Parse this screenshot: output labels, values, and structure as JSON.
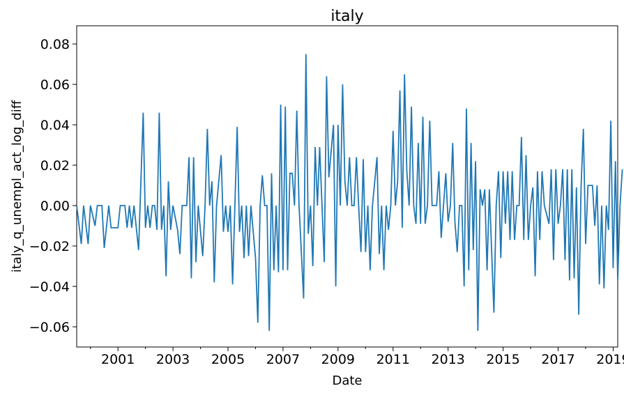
{
  "chart_data": {
    "type": "line",
    "title": "italy",
    "xlabel": "Date",
    "ylabel": "italy_q_unempl_act_log_diff",
    "x_range": [
      "2000-01",
      "2019-09"
    ],
    "ylim": [
      -0.07,
      0.089
    ],
    "x_tick_labels": [
      "2001",
      "2003",
      "2005",
      "2007",
      "2009",
      "2011",
      "2013",
      "2015",
      "2017",
      "2019"
    ],
    "y_tick_labels": [
      "-0.06",
      "-0.04",
      "-0.02",
      "0.00",
      "0.02",
      "0.04",
      "0.06",
      "0.08"
    ],
    "grid": false,
    "legend": "none",
    "series": [
      {
        "color": "#1f77b4",
        "points": [
          [
            "2000-01",
            0.0
          ],
          [
            "2000-03",
            -0.019
          ],
          [
            "2000-04",
            0.0
          ],
          [
            "2000-06",
            -0.019
          ],
          [
            "2000-07",
            0.0
          ],
          [
            "2000-09",
            -0.01
          ],
          [
            "2000-10",
            0.0
          ],
          [
            "2000-12",
            0.0
          ],
          [
            "2001-01",
            -0.021
          ],
          [
            "2001-03",
            0.0
          ],
          [
            "2001-04",
            -0.011
          ],
          [
            "2001-07",
            -0.011
          ],
          [
            "2001-08",
            0.0
          ],
          [
            "2001-10",
            0.0
          ],
          [
            "2001-11",
            -0.011
          ],
          [
            "2001-12",
            0.0
          ],
          [
            "2002-01",
            -0.011
          ],
          [
            "2002-02",
            0.0
          ],
          [
            "2002-04",
            -0.022
          ],
          [
            "2002-06",
            0.046
          ],
          [
            "2002-07",
            -0.011
          ],
          [
            "2002-08",
            0.0
          ],
          [
            "2002-09",
            -0.011
          ],
          [
            "2002-10",
            0.0
          ],
          [
            "2002-11",
            0.0
          ],
          [
            "2002-12",
            -0.012
          ],
          [
            "2003-01",
            0.046
          ],
          [
            "2003-02",
            -0.012
          ],
          [
            "2003-03",
            0.0
          ],
          [
            "2003-04",
            -0.035
          ],
          [
            "2003-05",
            0.012
          ],
          [
            "2003-06",
            -0.012
          ],
          [
            "2003-07",
            0.0
          ],
          [
            "2003-09",
            -0.012
          ],
          [
            "2003-10",
            -0.024
          ],
          [
            "2003-11",
            0.0
          ],
          [
            "2004-01",
            0.0
          ],
          [
            "2004-02",
            0.024
          ],
          [
            "2004-03",
            -0.036
          ],
          [
            "2004-04",
            0.024
          ],
          [
            "2004-05",
            -0.028
          ],
          [
            "2004-06",
            0.0
          ],
          [
            "2004-08",
            -0.025
          ],
          [
            "2004-09",
            0.0
          ],
          [
            "2004-10",
            0.038
          ],
          [
            "2004-11",
            0.0
          ],
          [
            "2004-12",
            0.012
          ],
          [
            "2005-01",
            -0.038
          ],
          [
            "2005-02",
            0.0
          ],
          [
            "2005-04",
            0.025
          ],
          [
            "2005-05",
            -0.013
          ],
          [
            "2005-06",
            0.0
          ],
          [
            "2005-07",
            -0.013
          ],
          [
            "2005-08",
            0.0
          ],
          [
            "2005-09",
            -0.039
          ],
          [
            "2005-10",
            0.0
          ],
          [
            "2005-11",
            0.039
          ],
          [
            "2005-12",
            -0.013
          ],
          [
            "2006-01",
            0.0
          ],
          [
            "2006-02",
            -0.026
          ],
          [
            "2006-03",
            0.0
          ],
          [
            "2006-04",
            -0.025
          ],
          [
            "2006-05",
            0.0
          ],
          [
            "2006-06",
            -0.013
          ],
          [
            "2006-07",
            -0.026
          ],
          [
            "2006-08",
            -0.058
          ],
          [
            "2006-09",
            0.0
          ],
          [
            "2006-10",
            0.015
          ],
          [
            "2006-11",
            0.0
          ],
          [
            "2006-12",
            0.0
          ],
          [
            "2007-01",
            -0.062
          ],
          [
            "2007-02",
            0.016
          ],
          [
            "2007-03",
            -0.032
          ],
          [
            "2007-04",
            0.0
          ],
          [
            "2007-05",
            -0.033
          ],
          [
            "2007-06",
            0.05
          ],
          [
            "2007-07",
            -0.032
          ],
          [
            "2007-08",
            0.049
          ],
          [
            "2007-09",
            -0.032
          ],
          [
            "2007-10",
            0.016
          ],
          [
            "2007-11",
            0.016
          ],
          [
            "2007-12",
            0.0
          ],
          [
            "2008-01",
            0.047
          ],
          [
            "2008-02",
            0.0
          ],
          [
            "2008-04",
            -0.046
          ],
          [
            "2008-05",
            0.075
          ],
          [
            "2008-06",
            -0.014
          ],
          [
            "2008-07",
            0.0
          ],
          [
            "2008-08",
            -0.03
          ],
          [
            "2008-09",
            0.029
          ],
          [
            "2008-10",
            0.0
          ],
          [
            "2008-11",
            0.029
          ],
          [
            "2009-01",
            -0.028
          ],
          [
            "2009-02",
            0.064
          ],
          [
            "2009-03",
            0.014
          ],
          [
            "2009-05",
            0.04
          ],
          [
            "2009-06",
            -0.04
          ],
          [
            "2009-07",
            0.04
          ],
          [
            "2009-08",
            0.0
          ],
          [
            "2009-09",
            0.06
          ],
          [
            "2009-10",
            0.012
          ],
          [
            "2009-11",
            0.0
          ],
          [
            "2009-12",
            0.024
          ],
          [
            "2010-01",
            0.0
          ],
          [
            "2010-02",
            0.0
          ],
          [
            "2010-03",
            0.024
          ],
          [
            "2010-04",
            0.0
          ],
          [
            "2010-05",
            -0.023
          ],
          [
            "2010-06",
            0.023
          ],
          [
            "2010-07",
            -0.023
          ],
          [
            "2010-08",
            0.0
          ],
          [
            "2010-09",
            -0.032
          ],
          [
            "2010-10",
            0.0
          ],
          [
            "2010-11",
            0.012
          ],
          [
            "2010-12",
            0.024
          ],
          [
            "2011-01",
            -0.024
          ],
          [
            "2011-02",
            0.0
          ],
          [
            "2011-03",
            -0.032
          ],
          [
            "2011-04",
            0.0
          ],
          [
            "2011-05",
            -0.012
          ],
          [
            "2011-06",
            0.0
          ],
          [
            "2011-07",
            0.037
          ],
          [
            "2011-08",
            0.0
          ],
          [
            "2011-09",
            0.012
          ],
          [
            "2011-10",
            0.057
          ],
          [
            "2011-11",
            -0.011
          ],
          [
            "2011-12",
            0.065
          ],
          [
            "2012-01",
            0.017
          ],
          [
            "2012-02",
            0.0
          ],
          [
            "2012-03",
            0.049
          ],
          [
            "2012-04",
            0.0
          ],
          [
            "2012-05",
            -0.009
          ],
          [
            "2012-06",
            0.031
          ],
          [
            "2012-07",
            -0.009
          ],
          [
            "2012-08",
            0.044
          ],
          [
            "2012-09",
            -0.009
          ],
          [
            "2012-10",
            0.0
          ],
          [
            "2012-11",
            0.042
          ],
          [
            "2012-12",
            0.0
          ],
          [
            "2013-01",
            0.0
          ],
          [
            "2013-02",
            0.0
          ],
          [
            "2013-03",
            0.017
          ],
          [
            "2013-04",
            -0.016
          ],
          [
            "2013-05",
            0.0
          ],
          [
            "2013-06",
            0.016
          ],
          [
            "2013-07",
            -0.008
          ],
          [
            "2013-08",
            0.0
          ],
          [
            "2013-09",
            0.031
          ],
          [
            "2013-10",
            -0.008
          ],
          [
            "2013-11",
            -0.023
          ],
          [
            "2013-12",
            0.0
          ],
          [
            "2014-01",
            0.0
          ],
          [
            "2014-02",
            -0.04
          ],
          [
            "2014-03",
            0.048
          ],
          [
            "2014-04",
            -0.032
          ],
          [
            "2014-05",
            0.031
          ],
          [
            "2014-06",
            -0.022
          ],
          [
            "2014-07",
            0.022
          ],
          [
            "2014-08",
            -0.062
          ],
          [
            "2014-09",
            0.008
          ],
          [
            "2014-10",
            0.0
          ],
          [
            "2014-11",
            0.008
          ],
          [
            "2014-12",
            -0.032
          ],
          [
            "2015-01",
            0.008
          ],
          [
            "2015-03",
            -0.053
          ],
          [
            "2015-04",
            0.0
          ],
          [
            "2015-05",
            0.017
          ],
          [
            "2015-06",
            -0.026
          ],
          [
            "2015-07",
            0.017
          ],
          [
            "2015-08",
            -0.009
          ],
          [
            "2015-09",
            0.017
          ],
          [
            "2015-10",
            -0.017
          ],
          [
            "2015-11",
            0.017
          ],
          [
            "2015-12",
            -0.017
          ],
          [
            "2016-01",
            0.0
          ],
          [
            "2016-02",
            0.0
          ],
          [
            "2016-03",
            0.034
          ],
          [
            "2016-04",
            -0.017
          ],
          [
            "2016-05",
            0.025
          ],
          [
            "2016-06",
            -0.017
          ],
          [
            "2016-07",
            0.0
          ],
          [
            "2016-08",
            0.009
          ],
          [
            "2016-09",
            -0.035
          ],
          [
            "2016-10",
            0.017
          ],
          [
            "2016-11",
            -0.017
          ],
          [
            "2016-12",
            0.017
          ],
          [
            "2017-01",
            0.0
          ],
          [
            "2017-03",
            -0.009
          ],
          [
            "2017-04",
            0.018
          ],
          [
            "2017-05",
            -0.027
          ],
          [
            "2017-06",
            0.018
          ],
          [
            "2017-07",
            -0.009
          ],
          [
            "2017-08",
            0.0
          ],
          [
            "2017-09",
            0.018
          ],
          [
            "2017-10",
            -0.027
          ],
          [
            "2017-11",
            0.018
          ],
          [
            "2017-12",
            -0.037
          ],
          [
            "2018-01",
            0.018
          ],
          [
            "2018-02",
            -0.036
          ],
          [
            "2018-03",
            0.009
          ],
          [
            "2018-04",
            -0.054
          ],
          [
            "2018-05",
            0.009
          ],
          [
            "2018-06",
            0.038
          ],
          [
            "2018-07",
            -0.019
          ],
          [
            "2018-08",
            0.01
          ],
          [
            "2018-09",
            0.01
          ],
          [
            "2018-10",
            0.01
          ],
          [
            "2018-11",
            -0.01
          ],
          [
            "2018-12",
            0.01
          ],
          [
            "2019-01",
            -0.039
          ],
          [
            "2019-02",
            0.0
          ],
          [
            "2019-03",
            -0.041
          ],
          [
            "2019-04",
            0.0
          ],
          [
            "2019-05",
            -0.012
          ],
          [
            "2019-06",
            0.042
          ],
          [
            "2019-07",
            -0.031
          ],
          [
            "2019-08",
            0.022
          ],
          [
            "2019-09",
            -0.037
          ],
          [
            "2019-10",
            0.0
          ],
          [
            "2019-11",
            0.018
          ]
        ]
      }
    ]
  }
}
